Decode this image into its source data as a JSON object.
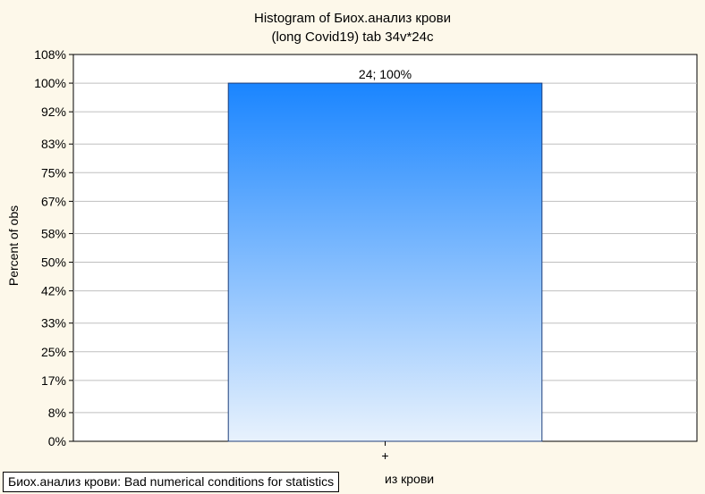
{
  "chart_data": {
    "type": "bar",
    "title_line1": "Histogram of Биох.анализ крови",
    "title_line2": "(long Covid19) tab 34v*24c",
    "ylabel": "Percent of obs",
    "xlabel_visible": "из крови",
    "categories": [
      "+"
    ],
    "values": [
      100
    ],
    "counts": [
      24
    ],
    "data_labels": [
      "24; 100%"
    ],
    "ylim": [
      0,
      108
    ],
    "yticks": [
      {
        "value": 0,
        "label": "0%"
      },
      {
        "value": 8,
        "label": "8%"
      },
      {
        "value": 17,
        "label": "17%"
      },
      {
        "value": 25,
        "label": "25%"
      },
      {
        "value": 33,
        "label": "33%"
      },
      {
        "value": 42,
        "label": "42%"
      },
      {
        "value": 50,
        "label": "50%"
      },
      {
        "value": 58,
        "label": "58%"
      },
      {
        "value": 67,
        "label": "67%"
      },
      {
        "value": 75,
        "label": "75%"
      },
      {
        "value": 83,
        "label": "83%"
      },
      {
        "value": 92,
        "label": "92%"
      },
      {
        "value": 100,
        "label": "100%"
      },
      {
        "value": 108,
        "label": "108%"
      }
    ],
    "grid": true,
    "bar_color_top": "#1a85ff",
    "bar_color_bottom": "#e8f2fd"
  },
  "status_message": "Биох.анализ крови:  Bad numerical conditions for statistics"
}
